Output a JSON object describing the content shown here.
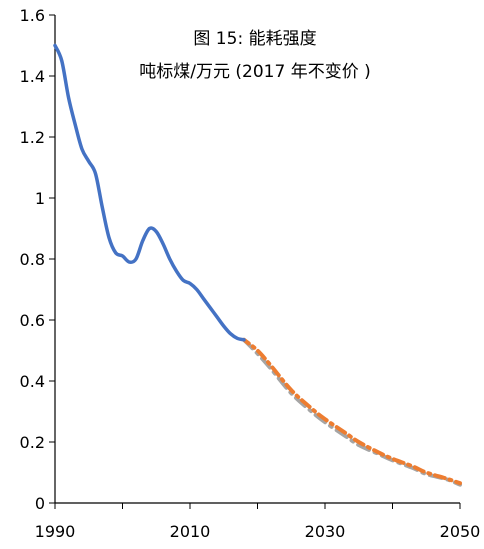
{
  "chart_data": {
    "type": "line",
    "title": "图 15: 能耗强度",
    "subtitle": "吨标煤/万元 (2017 年不变价 )",
    "xlabel": "",
    "ylabel": "",
    "xlim": [
      1990,
      2050
    ],
    "ylim": [
      0,
      1.6
    ],
    "x_ticks": [
      "1990",
      "2010",
      "2030",
      "2050"
    ],
    "y_ticks": [
      "0",
      "0.2",
      "0.4",
      "0.6",
      "0.8",
      "1",
      "1.2",
      "1.4",
      "1.6"
    ],
    "grid": false,
    "legend": "none",
    "series": [
      {
        "style": "solid",
        "color": "#4472C4",
        "x": [
          1990,
          1991,
          1992,
          1993,
          1994,
          1995,
          1996,
          1997,
          1998,
          1999,
          2000,
          2001,
          2002,
          2003,
          2004,
          2005,
          2006,
          2007,
          2008,
          2009,
          2010,
          2011,
          2012,
          2013,
          2014,
          2015,
          2016,
          2017,
          2018
        ],
        "y": [
          1.5,
          1.45,
          1.33,
          1.24,
          1.16,
          1.12,
          1.08,
          0.97,
          0.87,
          0.82,
          0.81,
          0.79,
          0.8,
          0.86,
          0.9,
          0.89,
          0.85,
          0.8,
          0.76,
          0.73,
          0.72,
          0.7,
          0.67,
          0.64,
          0.61,
          0.58,
          0.555,
          0.54,
          0.535
        ]
      },
      {
        "style": "dashed",
        "color": "#ED7D31",
        "x": [
          2018,
          2020,
          2022,
          2025,
          2028,
          2030,
          2033,
          2035,
          2038,
          2040,
          2043,
          2045,
          2048,
          2050
        ],
        "y": [
          0.535,
          0.5,
          0.45,
          0.37,
          0.31,
          0.275,
          0.23,
          0.2,
          0.165,
          0.145,
          0.12,
          0.1,
          0.08,
          0.065
        ]
      },
      {
        "style": "dashed",
        "color": "#A5A5A5",
        "x": [
          2018,
          2020,
          2022,
          2025,
          2028,
          2030,
          2033,
          2035,
          2038,
          2040,
          2043,
          2045,
          2048,
          2050
        ],
        "y": [
          0.535,
          0.49,
          0.44,
          0.36,
          0.3,
          0.265,
          0.22,
          0.19,
          0.16,
          0.14,
          0.115,
          0.095,
          0.078,
          0.06
        ]
      }
    ]
  }
}
